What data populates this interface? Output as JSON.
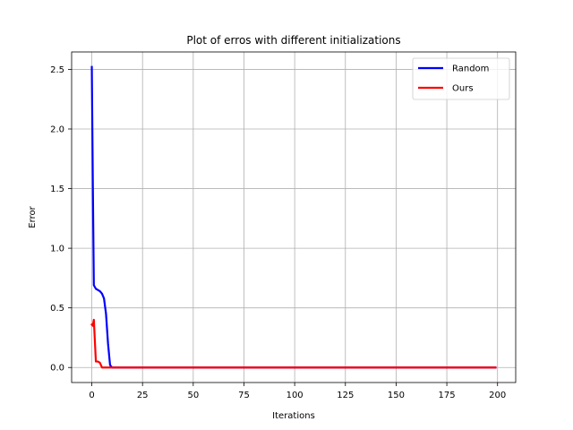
{
  "chart_data": {
    "type": "line",
    "title": "Plot of erros with different initializations",
    "xlabel": "Iterations",
    "ylabel": "Error",
    "xlim": [
      -9.95,
      208.95
    ],
    "ylim": [
      -0.126,
      2.646
    ],
    "xticks": [
      0,
      25,
      50,
      75,
      100,
      125,
      150,
      175,
      200
    ],
    "yticks": [
      0.0,
      0.5,
      1.0,
      1.5,
      2.0,
      2.5
    ],
    "xtick_labels": [
      "0",
      "25",
      "50",
      "75",
      "100",
      "125",
      "150",
      "175",
      "200"
    ],
    "ytick_labels": [
      "0.0",
      "0.5",
      "1.0",
      "1.5",
      "2.0",
      "2.5"
    ],
    "grid": true,
    "legend_position": "top-right",
    "series": [
      {
        "name": "Random",
        "color": "#0000ff",
        "x": [
          0,
          0.5,
          1,
          2,
          3,
          4,
          5,
          6,
          7,
          8,
          9,
          10,
          11,
          199
        ],
        "y": [
          2.52,
          1.55,
          0.69,
          0.66,
          0.65,
          0.64,
          0.62,
          0.58,
          0.45,
          0.2,
          0.02,
          0.0,
          0.0,
          0.0
        ]
      },
      {
        "name": "Ours",
        "color": "#ff0000",
        "x": [
          0,
          0.5,
          1,
          2,
          3,
          4,
          5,
          6,
          7,
          8,
          199
        ],
        "y": [
          0.36,
          0.35,
          0.4,
          0.05,
          0.05,
          0.04,
          0.0,
          0.0,
          0.0,
          0.0,
          0.0
        ]
      }
    ]
  }
}
